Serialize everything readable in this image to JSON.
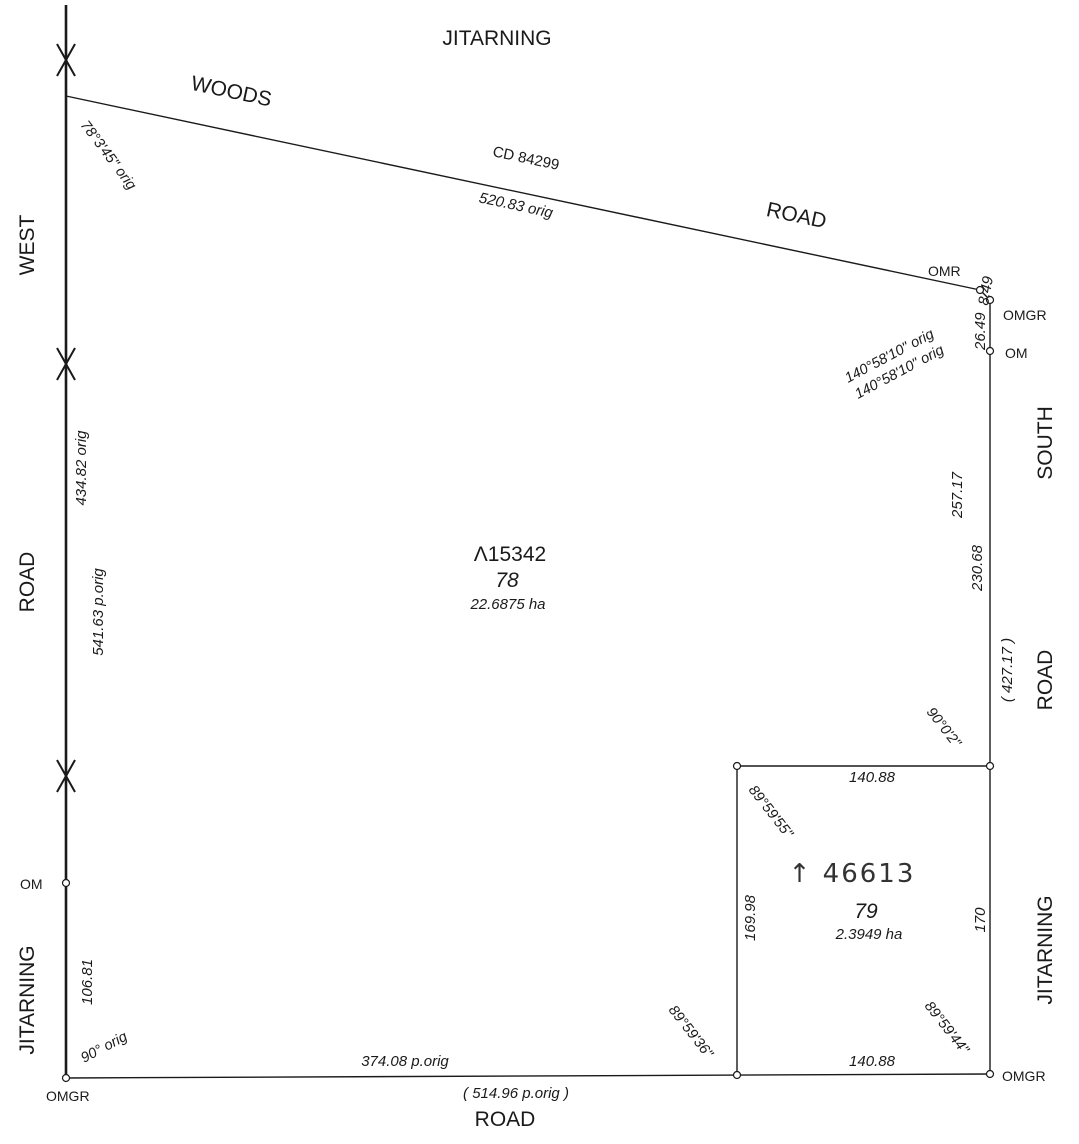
{
  "roads": {
    "jitarning_top": "JITARNING",
    "woods": "WOODS",
    "road_top": "ROAD",
    "west": "WEST",
    "road_left": "ROAD",
    "south": "SOUTH",
    "road_right": "ROAD",
    "jitarning_left": "JITARNING",
    "jitarning_right": "JITARNING",
    "road_bottom": "ROAD"
  },
  "plan_ref": "CD 84299",
  "lot78": {
    "title_ref": "Λ15342",
    "number": "78",
    "area": "22.6875 ha"
  },
  "lot79": {
    "title_ref_handwritten": "↑ 46613",
    "number": "79",
    "area": "2.3949 ha"
  },
  "dimensions": {
    "top_boundary": "520.83 orig",
    "top_angle": "78°3'45\" orig",
    "left_upper": "434.82 orig",
    "left_total": "541.63 p.orig",
    "left_lower": "106.81",
    "bottom_angle_left": "90° orig",
    "bottom_left": "374.08 p.orig",
    "bottom_total": "( 514.96 p.orig )",
    "bottom_right": "140.88",
    "lot79_top": "140.88",
    "lot79_left": "169.98",
    "lot79_right": "170",
    "right_upper": "257.17",
    "right_lower": "230.68",
    "right_total": "( 427.17 )",
    "short_1": "8.49",
    "short_2": "26.49",
    "angle_ne_1": "140°58'10\" orig",
    "angle_ne_2": "140°58'10\" orig",
    "angle_right": "90°0'2\"",
    "angle_79_tl": "89°59'55\"",
    "angle_79_bl": "89°59'36\"",
    "angle_79_br": "89°59'44\""
  },
  "marks": {
    "omr": "OMR",
    "omgr_ne": "OMGR",
    "om_ne": "OM",
    "om_left": "OM",
    "omgr_sw": "OMGR",
    "omgr_se": "OMGR"
  }
}
